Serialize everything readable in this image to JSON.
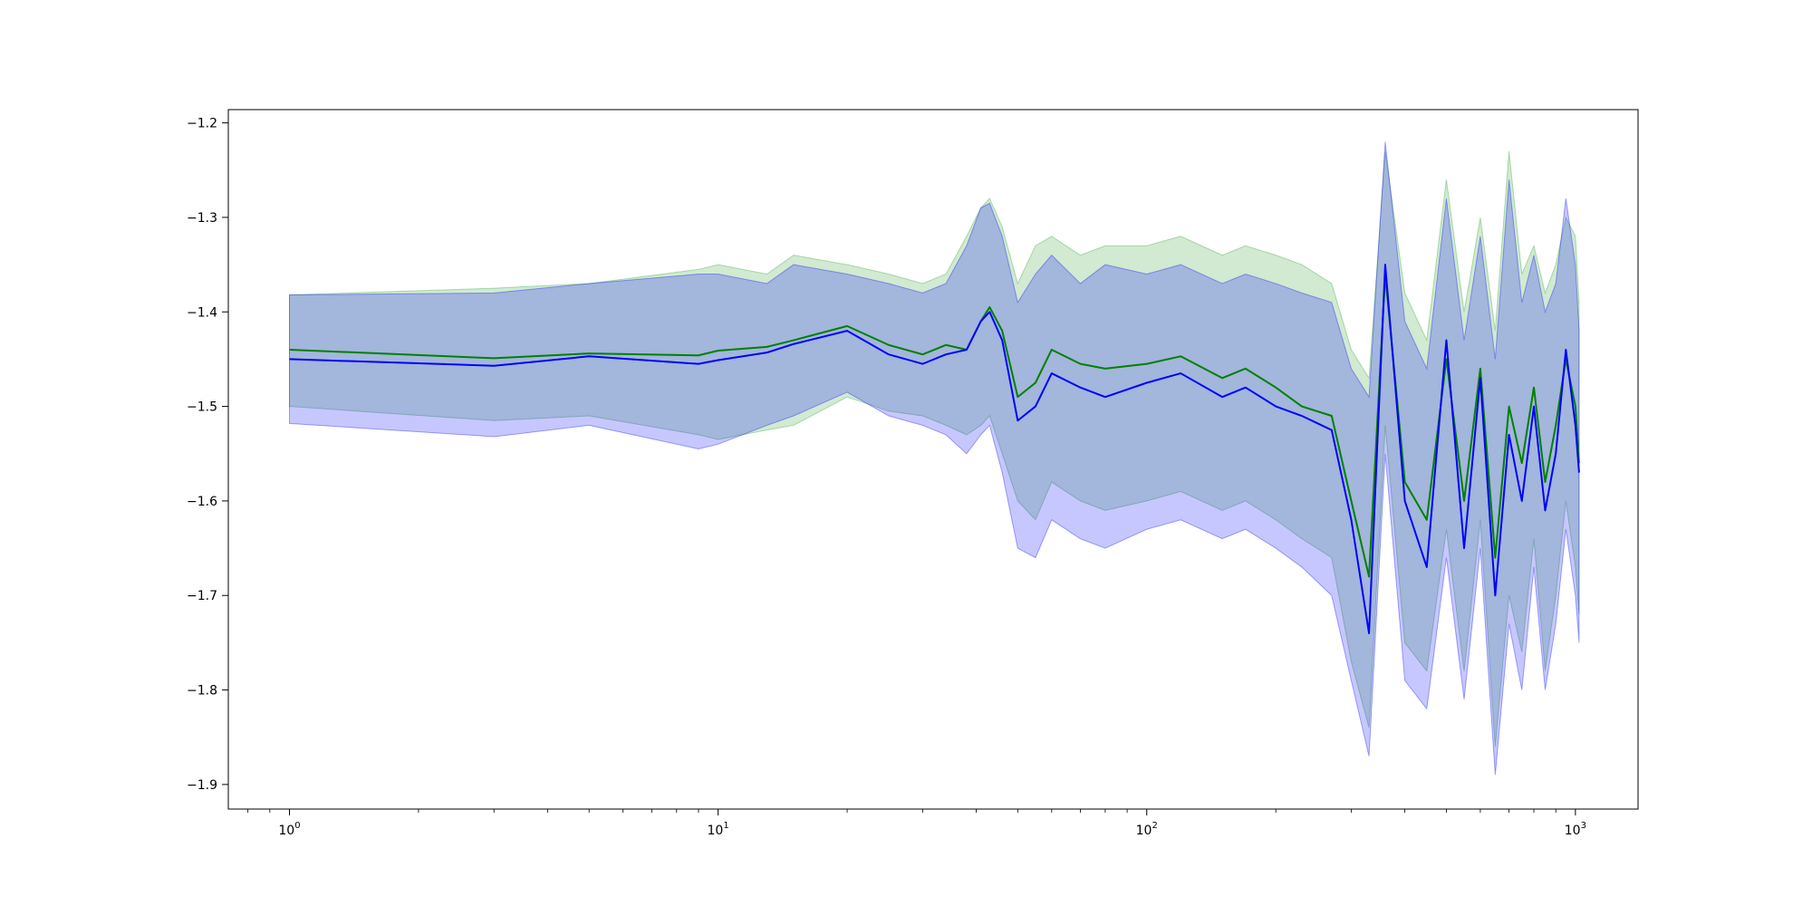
{
  "chart_data": {
    "type": "line",
    "title": "",
    "xlabel": "",
    "ylabel": "",
    "x_scale": "log",
    "xlim": [
      0.72,
      1400
    ],
    "ylim": [
      -1.926,
      -1.186
    ],
    "grid": false,
    "legend": "none",
    "x_ticks": [
      {
        "value": 1,
        "base": "10",
        "exp": "0"
      },
      {
        "value": 10,
        "base": "10",
        "exp": "1"
      },
      {
        "value": 100,
        "base": "10",
        "exp": "2"
      },
      {
        "value": 1000,
        "base": "10",
        "exp": "3"
      }
    ],
    "y_ticks": [
      {
        "value": -1.2,
        "label": "−1.2"
      },
      {
        "value": -1.3,
        "label": "−1.3"
      },
      {
        "value": -1.4,
        "label": "−1.4"
      },
      {
        "value": -1.5,
        "label": "−1.5"
      },
      {
        "value": -1.6,
        "label": "−1.6"
      },
      {
        "value": -1.7,
        "label": "−1.7"
      },
      {
        "value": -1.8,
        "label": "−1.8"
      },
      {
        "value": -1.9,
        "label": "−1.9"
      }
    ],
    "series": [
      {
        "color": "#008000",
        "band_color": "#2ca02c",
        "x": [
          1,
          3,
          5,
          9,
          10,
          13,
          15,
          20,
          25,
          30,
          34,
          38,
          41,
          43,
          46,
          50,
          55,
          60,
          70,
          80,
          100,
          120,
          150,
          170,
          200,
          230,
          270,
          300,
          330,
          360,
          400,
          450,
          500,
          550,
          600,
          650,
          700,
          750,
          800,
          850,
          900,
          950,
          1000,
          1020
        ],
        "values": [
          -1.44,
          -1.449,
          -1.444,
          -1.446,
          -1.441,
          -1.437,
          -1.43,
          -1.415,
          -1.435,
          -1.445,
          -1.435,
          -1.44,
          -1.41,
          -1.395,
          -1.42,
          -1.49,
          -1.475,
          -1.44,
          -1.455,
          -1.46,
          -1.455,
          -1.447,
          -1.47,
          -1.46,
          -1.48,
          -1.5,
          -1.51,
          -1.6,
          -1.68,
          -1.36,
          -1.58,
          -1.62,
          -1.45,
          -1.6,
          -1.46,
          -1.66,
          -1.5,
          -1.56,
          -1.48,
          -1.58,
          -1.52,
          -1.45,
          -1.5,
          -1.56
        ],
        "upper": [
          -1.382,
          -1.375,
          -1.37,
          -1.355,
          -1.35,
          -1.36,
          -1.34,
          -1.35,
          -1.36,
          -1.37,
          -1.36,
          -1.32,
          -1.29,
          -1.28,
          -1.31,
          -1.37,
          -1.33,
          -1.32,
          -1.34,
          -1.33,
          -1.33,
          -1.32,
          -1.34,
          -1.33,
          -1.34,
          -1.35,
          -1.37,
          -1.44,
          -1.47,
          -1.23,
          -1.38,
          -1.43,
          -1.26,
          -1.4,
          -1.3,
          -1.42,
          -1.23,
          -1.36,
          -1.33,
          -1.38,
          -1.35,
          -1.3,
          -1.32,
          -1.39
        ],
        "lower": [
          -1.5,
          -1.515,
          -1.51,
          -1.53,
          -1.535,
          -1.525,
          -1.52,
          -1.49,
          -1.505,
          -1.51,
          -1.52,
          -1.53,
          -1.52,
          -1.51,
          -1.55,
          -1.6,
          -1.62,
          -1.58,
          -1.6,
          -1.61,
          -1.6,
          -1.59,
          -1.61,
          -1.6,
          -1.62,
          -1.64,
          -1.66,
          -1.77,
          -1.84,
          -1.52,
          -1.75,
          -1.78,
          -1.63,
          -1.78,
          -1.62,
          -1.86,
          -1.7,
          -1.76,
          -1.64,
          -1.78,
          -1.7,
          -1.6,
          -1.67,
          -1.72
        ]
      },
      {
        "color": "#0000ff",
        "band_color": "#0000ff",
        "x": [
          1,
          3,
          5,
          9,
          10,
          13,
          15,
          20,
          25,
          30,
          34,
          38,
          41,
          43,
          46,
          50,
          55,
          60,
          70,
          80,
          100,
          120,
          150,
          170,
          200,
          230,
          270,
          300,
          330,
          360,
          400,
          450,
          500,
          550,
          600,
          650,
          700,
          750,
          800,
          850,
          900,
          950,
          1000,
          1020
        ],
        "values": [
          -1.45,
          -1.457,
          -1.447,
          -1.455,
          -1.451,
          -1.443,
          -1.434,
          -1.42,
          -1.445,
          -1.455,
          -1.445,
          -1.44,
          -1.41,
          -1.4,
          -1.43,
          -1.515,
          -1.5,
          -1.465,
          -1.48,
          -1.49,
          -1.475,
          -1.465,
          -1.49,
          -1.48,
          -1.5,
          -1.51,
          -1.525,
          -1.62,
          -1.74,
          -1.35,
          -1.6,
          -1.67,
          -1.43,
          -1.65,
          -1.47,
          -1.7,
          -1.53,
          -1.6,
          -1.5,
          -1.61,
          -1.55,
          -1.44,
          -1.52,
          -1.57
        ],
        "upper": [
          -1.382,
          -1.38,
          -1.37,
          -1.36,
          -1.36,
          -1.37,
          -1.35,
          -1.36,
          -1.37,
          -1.38,
          -1.37,
          -1.33,
          -1.29,
          -1.285,
          -1.32,
          -1.39,
          -1.36,
          -1.34,
          -1.37,
          -1.35,
          -1.36,
          -1.35,
          -1.37,
          -1.36,
          -1.37,
          -1.38,
          -1.39,
          -1.46,
          -1.49,
          -1.22,
          -1.41,
          -1.46,
          -1.28,
          -1.43,
          -1.32,
          -1.45,
          -1.26,
          -1.39,
          -1.34,
          -1.4,
          -1.37,
          -1.28,
          -1.35,
          -1.42
        ],
        "lower": [
          -1.518,
          -1.532,
          -1.52,
          -1.545,
          -1.54,
          -1.52,
          -1.51,
          -1.485,
          -1.51,
          -1.52,
          -1.53,
          -1.55,
          -1.53,
          -1.52,
          -1.57,
          -1.65,
          -1.66,
          -1.62,
          -1.64,
          -1.65,
          -1.63,
          -1.62,
          -1.64,
          -1.63,
          -1.65,
          -1.67,
          -1.7,
          -1.79,
          -1.87,
          -1.55,
          -1.79,
          -1.82,
          -1.66,
          -1.81,
          -1.65,
          -1.89,
          -1.73,
          -1.8,
          -1.67,
          -1.8,
          -1.73,
          -1.63,
          -1.7,
          -1.75
        ]
      }
    ]
  }
}
